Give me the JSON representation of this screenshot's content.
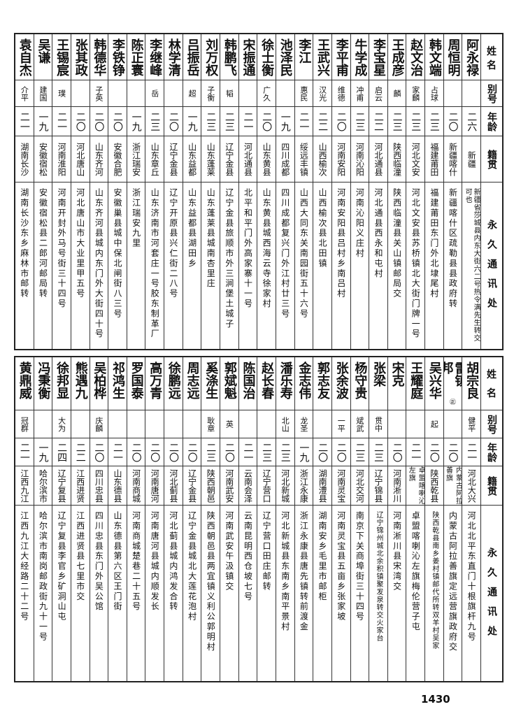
{
  "headers": {
    "name": "姓名",
    "alias": "别号",
    "age": "年龄",
    "origin": "籍贯",
    "address": "永久通讯处"
  },
  "top_table": [
    {
      "name": "阿永禄",
      "alias": "",
      "age": "二六",
      "origin": "新疆",
      "address": "新疆省莎城县内东大街六二号热令满先生转交",
      "address_note": "可也"
    },
    {
      "name": "周恒明",
      "alias": "",
      "age": "二〇",
      "origin": "新疆喀什",
      "address": "新疆喀什区疏勒县县政府转"
    },
    {
      "name": "韩文端",
      "alias": "占球",
      "age": "二三",
      "origin": "福建莆田",
      "address": "福建莆田东门外北埭尾村"
    },
    {
      "name": "赵文治",
      "alias": "家麟",
      "age": "二三",
      "origin": "河北文安",
      "address": "河北文安县苏桥镇北大街门牌一号"
    },
    {
      "name": "王成彦",
      "alias": "麟",
      "age": "二三",
      "origin": "陕西临潼",
      "address": "陕西临潼县关山镇邮局交"
    },
    {
      "name": "李宝星",
      "alias": "启云",
      "age": "二二",
      "origin": "河北通县",
      "address": "河北通县西永和屯村"
    },
    {
      "name": "牛学成",
      "alias": "冲甫",
      "age": "二三",
      "origin": "河南沁阳",
      "address": "河南沁阳义庄村"
    },
    {
      "name": "李平甫",
      "alias": "维德",
      "age": "二〇",
      "origin": "河南安阳",
      "address": "河南安阳县吕村乡南吕村"
    },
    {
      "name": "王武兴",
      "alias": "汉光",
      "age": "二二",
      "origin": "山西榆次",
      "address": "山西榆次县北田镇"
    },
    {
      "name": "李江",
      "alias": "惠民",
      "age": "二一",
      "origin": "绥远丰镇",
      "address": "山西大同东关南园街五十六号"
    },
    {
      "name": "池泽民",
      "alias": "",
      "age": "一九",
      "origin": "四川成都",
      "address": "四川成都复兴门外江村廿三号"
    },
    {
      "name": "徐士衡",
      "alias": "广久",
      "age": "二〇",
      "origin": "山东黄县",
      "address": "山东黄县城西海云寺徐家村"
    },
    {
      "name": "宋振通",
      "alias": "",
      "age": "二一",
      "origin": "河北通县",
      "address": "北平和平门外高家寨十一号"
    },
    {
      "name": "韩鹏飞",
      "alias": "韬",
      "age": "二三",
      "origin": "辽宁金县",
      "address": "辽宁金县旅顺市外三涧堡土城子"
    },
    {
      "name": "刘万权",
      "alias": "子衡",
      "age": "二三",
      "origin": "山东蓬莱",
      "address": "山东蓬莱县城南杏里庄"
    },
    {
      "name": "吕振岳",
      "alias": "超",
      "age": "一九",
      "origin": "山东益都",
      "address": "山东益都县湖田乡"
    },
    {
      "name": "林学清",
      "alias": "",
      "age": "二〇",
      "origin": "辽宁金县",
      "address": "辽宁开原县兴仁街二八号"
    },
    {
      "name": "李继峰",
      "alias": "岳",
      "age": "二三",
      "origin": "山东章丘",
      "address": "山东济南市河套庄一号胶东制革厂"
    },
    {
      "name": "陈正寰",
      "alias": "",
      "age": "一九",
      "origin": "浙江瑞安",
      "address": "浙江瑞安九里"
    },
    {
      "name": "李铁铮",
      "alias": "",
      "age": "二〇",
      "origin": "安徽合肥",
      "address": "安徽巢县城中保北闸街八三号"
    },
    {
      "name": "韩德华",
      "alias": "子英",
      "age": "二〇",
      "origin": "山东齐河",
      "address": "山东齐河县城内东门外大街四十号"
    },
    {
      "name": "张其政",
      "alias": "",
      "age": "二〇",
      "origin": "河北唐山",
      "address": "河北唐山市大业里甲五号"
    },
    {
      "name": "王锡宸",
      "alias": "璞",
      "age": "二一",
      "origin": "河南淮阳",
      "address": "河南开封外马号街三十四号"
    },
    {
      "name": "吴谦",
      "alias": "建国",
      "age": "一九",
      "origin": "安徽宿松",
      "address": "安徽宿松县二郎河邮局转"
    },
    {
      "name": "袁自杰",
      "alias": "介平",
      "age": "二一",
      "origin": "湖南长沙",
      "address": "湖南长沙东乡麻林市邮转"
    }
  ],
  "bottom_table": [
    {
      "name": "胡宗良",
      "alias": "健平",
      "age": "二一",
      "origin": "河北大兴",
      "address": "河北北平东直门十根旗杆九号"
    },
    {
      "name": "雷镇邦",
      "name_mark": "㊣",
      "alias": "",
      "age": "二〇",
      "origin": "内蒙古阿拉善旗",
      "address": "内蒙古阿拉善旗定远营旗政府交"
    },
    {
      "name": "吴兴华",
      "alias": "起",
      "age": "二〇",
      "origin": "陕西乾县",
      "address": "陕西乾县南乡姜村镇邮代所转双羊村吴家"
    },
    {
      "name": "王耀庭",
      "alias": "",
      "age": "二一",
      "origin": "卓盟喀喇沁左旗",
      "address": "卓盟喀喇沁左旗梅伦营子屯"
    },
    {
      "name": "宋克",
      "alias": "",
      "age": "二〇",
      "origin": "河南淅川",
      "address": "河南淅川县宋湾交"
    },
    {
      "name": "张梁",
      "alias": "贯中",
      "age": "二三",
      "origin": "辽宁锦县",
      "address": "辽宁锦州城北余积镇聚发泉转交火家台"
    },
    {
      "name": "杨守贵",
      "alias": "斌武",
      "age": "二三",
      "origin": "河北交河",
      "address": "南京下关商埠街三十四号"
    },
    {
      "name": "张余波",
      "alias": "一平",
      "age": "二〇",
      "origin": "河南灵宝",
      "address": "河南灵宝县五亩乡张家坡"
    },
    {
      "name": "郭志友",
      "alias": "",
      "age": "二〇",
      "origin": "湖南澧县",
      "address": "湖南安乡毛里市邮柜"
    },
    {
      "name": "金志伟",
      "alias": "龙圣",
      "age": "一九",
      "origin": "浙江永康",
      "address": "浙江永康县唐先镇转前渡金"
    },
    {
      "name": "潘乐寿",
      "alias": "北山",
      "age": "二三",
      "origin": "河北新城",
      "address": "河北新城县东南乡南平景村"
    },
    {
      "name": "赵长春",
      "alias": "",
      "age": "二三",
      "origin": "辽宁营口",
      "address": "辽宁营口田庄邮转"
    },
    {
      "name": "陈国治",
      "alias": "",
      "age": "二一",
      "origin": "云南会泽",
      "address": "云南昆明西仓坡七号"
    },
    {
      "name": "郭斌魁",
      "alias": "英",
      "age": "二〇",
      "origin": "河南武安",
      "address": "河南武安午汲镇交"
    },
    {
      "name": "奚涤生",
      "alias": "耿章",
      "age": "二三",
      "origin": "陕西朝邑",
      "address": "陕西朝邑县两宜镇义利公郭明村"
    },
    {
      "name": "周志远",
      "alias": "",
      "age": "二〇",
      "origin": "辽宁金县",
      "address": "辽宁金县城北大莲花泡村"
    },
    {
      "name": "徐鹏远",
      "alias": "",
      "age": "二〇",
      "origin": "河北蓟县",
      "address": "河北蓟县城内鸿发合转"
    },
    {
      "name": "高万青",
      "alias": "",
      "age": "二〇",
      "origin": "河南唐河",
      "address": "河南唐河县城内顺发长"
    },
    {
      "name": "罗国泰",
      "alias": "",
      "age": "二〇",
      "origin": "河南商城",
      "address": "河南商城楚巷二十五号"
    },
    {
      "name": "祁鸿生",
      "alias": "",
      "age": "二一",
      "origin": "山东德县",
      "address": "山东德县第六区王门街"
    },
    {
      "name": "吴柏桦",
      "alias": "庆麟",
      "age": "二〇",
      "origin": "四川忠县",
      "address": "四川忠县东门外吴公馆"
    },
    {
      "name": "熊遇九",
      "alias": "",
      "age": "二二",
      "origin": "江西进贤",
      "address": "江西进贤县七里市交"
    },
    {
      "name": "徐邦显",
      "alias": "大为",
      "age": "二四",
      "origin": "辽宁复县",
      "address": "辽宁复县李官乡矿洞山屯"
    },
    {
      "name": "冯秉衡",
      "alias": "",
      "age": "一九",
      "origin": "哈尔滨市",
      "address": "哈尔滨市南岗邮政街九十一号"
    },
    {
      "name": "黄鼎威",
      "alias": "冠群",
      "age": "二一",
      "origin": "江西九江",
      "address": "江西九江大经路二十二号"
    }
  ],
  "page_number": "1430"
}
